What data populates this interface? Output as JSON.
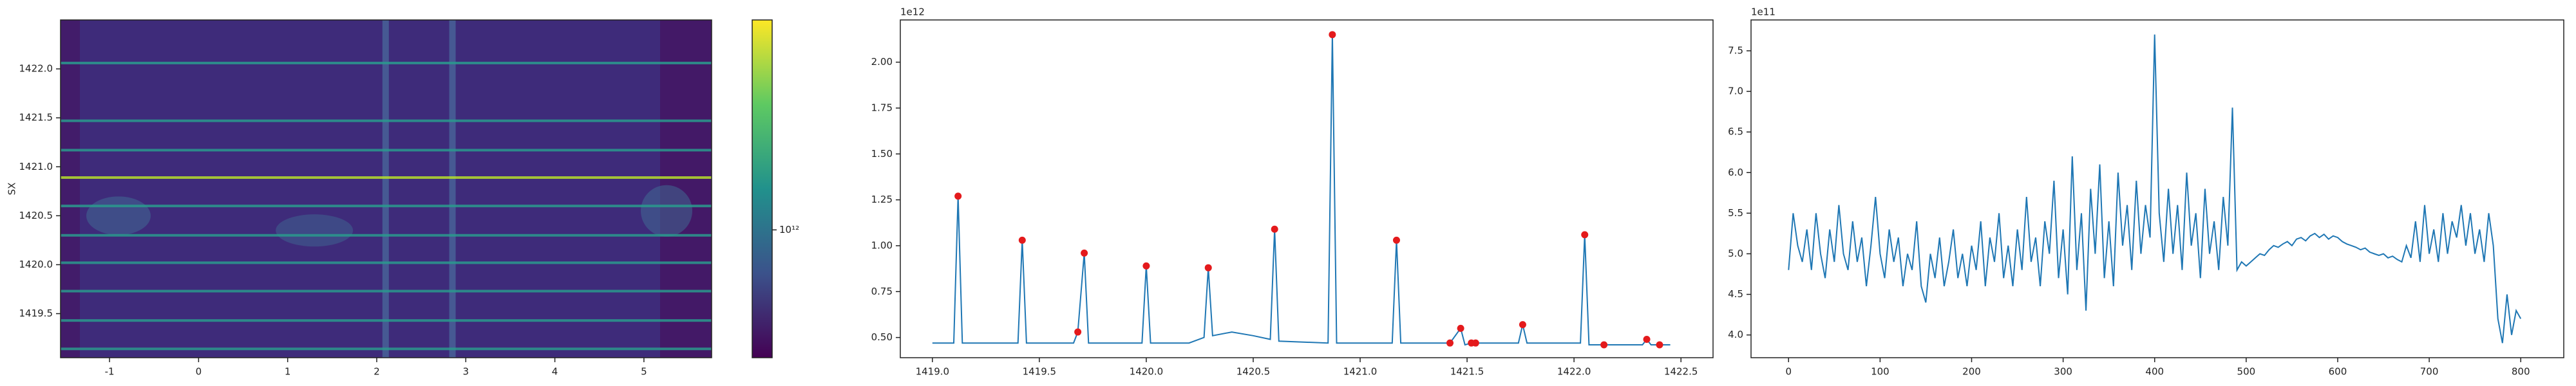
{
  "chart_data": [
    {
      "type": "heatmap",
      "ylabel": "SX",
      "colormap": "viridis",
      "xlim": [
        -1.55,
        5.76
      ],
      "xticks": [
        -1,
        0,
        1,
        2,
        3,
        4,
        5
      ],
      "ylim": [
        1419.05,
        1422.5
      ],
      "yticks": [
        {
          "value": 1419.5,
          "label": "1419.5"
        },
        {
          "value": 1420,
          "label": "1420.0"
        },
        {
          "value": 1420.5,
          "label": "1420.5"
        },
        {
          "value": 1421,
          "label": "1421.0"
        },
        {
          "value": 1421.5,
          "label": "1421.5"
        },
        {
          "value": 1422,
          "label": "1422.0"
        }
      ],
      "streaks": [
        1422.06,
        1421.47,
        1421.17,
        1420.89,
        1420.6,
        1420.3,
        1420.02,
        1419.73,
        1419.43,
        1419.14
      ],
      "vertical_bands": [
        2.1,
        2.85
      ],
      "colorbar": {
        "log": true,
        "clim": [
          430000000000,
          4000000000000
        ],
        "ticks": [
          {
            "value": 1000000000000,
            "label": "10¹²"
          }
        ]
      }
    },
    {
      "type": "line",
      "offset_text": "1e12",
      "color": "#1f77b4",
      "marker_color": "#e41a1c",
      "xlim": [
        1418.85,
        1422.65
      ],
      "xticks": [
        {
          "value": 1419,
          "label": "1419.0"
        },
        1419.5,
        {
          "value": 1420,
          "label": "1420.0"
        },
        1420.5,
        {
          "value": 1421,
          "label": "1421.0"
        },
        1421.5,
        {
          "value": 1422,
          "label": "1422.0"
        },
        1422.5
      ],
      "ylim": [
        0.39,
        2.23
      ],
      "yticks": [
        {
          "value": 0.5,
          "label": "0.50"
        },
        {
          "value": 0.75,
          "label": "0.75"
        },
        {
          "value": 1,
          "label": "1.00"
        },
        {
          "value": 1.25,
          "label": "1.25"
        },
        {
          "value": 1.5,
          "label": "1.50"
        },
        {
          "value": 1.75,
          "label": "1.75"
        },
        {
          "value": 2,
          "label": "2.00"
        }
      ],
      "x": [
        1419.0,
        1419.1,
        1419.12,
        1419.14,
        1419.4,
        1419.42,
        1419.44,
        1419.66,
        1419.68,
        1419.71,
        1419.73,
        1419.98,
        1420.0,
        1420.02,
        1420.2,
        1420.27,
        1420.29,
        1420.31,
        1420.4,
        1420.5,
        1420.58,
        1420.6,
        1420.62,
        1420.85,
        1420.87,
        1420.89,
        1421.15,
        1421.17,
        1421.19,
        1421.4,
        1421.42,
        1421.47,
        1421.49,
        1421.52,
        1421.54,
        1421.74,
        1421.76,
        1421.78,
        1422.03,
        1422.05,
        1422.07,
        1422.14,
        1422.32,
        1422.34,
        1422.36,
        1422.4,
        1422.45
      ],
      "values": [
        0.47,
        0.47,
        1.27,
        0.47,
        0.47,
        1.03,
        0.47,
        0.47,
        0.53,
        0.96,
        0.47,
        0.47,
        0.89,
        0.47,
        0.47,
        0.5,
        0.88,
        0.51,
        0.53,
        0.51,
        0.49,
        1.09,
        0.48,
        0.47,
        2.15,
        0.47,
        0.47,
        1.03,
        0.47,
        0.47,
        0.47,
        0.55,
        0.46,
        0.47,
        0.47,
        0.47,
        0.57,
        0.47,
        0.47,
        1.06,
        0.46,
        0.46,
        0.46,
        0.49,
        0.46,
        0.46,
        0.46
      ],
      "peaks_x": [
        1419.12,
        1419.42,
        1419.68,
        1419.71,
        1420.0,
        1420.29,
        1420.6,
        1420.87,
        1421.17,
        1421.42,
        1421.47,
        1421.52,
        1421.54,
        1421.76,
        1422.05,
        1422.14,
        1422.34,
        1422.4
      ],
      "peaks_y": [
        1.27,
        1.03,
        0.53,
        0.96,
        0.89,
        0.88,
        1.09,
        2.15,
        1.03,
        0.47,
        0.55,
        0.47,
        0.47,
        0.57,
        1.06,
        0.46,
        0.49,
        0.46
      ]
    },
    {
      "type": "line",
      "offset_text": "1e11",
      "color": "#1f77b4",
      "xlim": [
        -41,
        847
      ],
      "xticks": [
        0,
        100,
        200,
        300,
        400,
        500,
        600,
        700,
        800
      ],
      "ylim": [
        3.72,
        7.88
      ],
      "yticks": [
        {
          "value": 4,
          "label": "4.0"
        },
        4.5,
        {
          "value": 5,
          "label": "5.0"
        },
        5.5,
        {
          "value": 6,
          "label": "6.0"
        },
        6.5,
        {
          "value": 7,
          "label": "7.0"
        },
        7.5
      ],
      "x": [
        0,
        5,
        10,
        15,
        20,
        25,
        30,
        35,
        40,
        45,
        50,
        55,
        60,
        65,
        70,
        75,
        80,
        85,
        90,
        95,
        100,
        105,
        110,
        115,
        120,
        125,
        130,
        135,
        140,
        145,
        150,
        155,
        160,
        165,
        170,
        175,
        180,
        185,
        190,
        195,
        200,
        205,
        210,
        215,
        220,
        225,
        230,
        235,
        240,
        245,
        250,
        255,
        260,
        265,
        270,
        275,
        280,
        285,
        290,
        295,
        300,
        305,
        310,
        315,
        320,
        325,
        330,
        335,
        340,
        345,
        350,
        355,
        360,
        365,
        370,
        375,
        380,
        385,
        390,
        395,
        400,
        405,
        410,
        415,
        420,
        425,
        430,
        435,
        440,
        445,
        450,
        455,
        460,
        465,
        470,
        475,
        480,
        485,
        490,
        495,
        500,
        505,
        510,
        515,
        520,
        525,
        530,
        535,
        540,
        545,
        550,
        555,
        560,
        565,
        570,
        575,
        580,
        585,
        590,
        595,
        600,
        605,
        610,
        615,
        620,
        625,
        630,
        635,
        640,
        645,
        650,
        655,
        660,
        665,
        670,
        675,
        680,
        685,
        690,
        695,
        700,
        705,
        710,
        715,
        720,
        725,
        730,
        735,
        740,
        745,
        750,
        755,
        760,
        765,
        770,
        775,
        780,
        785,
        790,
        795,
        800
      ],
      "values": [
        4.8,
        5.5,
        5.1,
        4.9,
        5.3,
        4.8,
        5.5,
        5.0,
        4.7,
        5.3,
        4.9,
        5.6,
        5.0,
        4.8,
        5.4,
        4.9,
        5.2,
        4.6,
        5.1,
        5.7,
        5.0,
        4.7,
        5.3,
        4.9,
        5.2,
        4.6,
        5.0,
        4.8,
        5.4,
        4.6,
        4.4,
        5.0,
        4.7,
        5.2,
        4.6,
        4.9,
        5.3,
        4.7,
        5.0,
        4.6,
        5.1,
        4.8,
        5.4,
        4.6,
        5.2,
        4.9,
        5.5,
        4.7,
        5.1,
        4.6,
        5.3,
        4.8,
        5.7,
        4.9,
        5.2,
        4.6,
        5.4,
        5.0,
        5.9,
        4.7,
        5.3,
        4.5,
        6.2,
        4.8,
        5.5,
        4.3,
        5.8,
        5.0,
        6.1,
        4.7,
        5.4,
        4.6,
        6.0,
        5.1,
        5.6,
        4.8,
        5.9,
        5.0,
        5.6,
        5.2,
        7.7,
        5.5,
        4.9,
        5.8,
        5.0,
        5.6,
        4.8,
        6.0,
        5.1,
        5.5,
        4.7,
        5.8,
        5.0,
        5.4,
        4.8,
        5.7,
        5.1,
        6.8,
        4.8,
        4.9,
        4.85,
        4.9,
        4.95,
        5.0,
        4.98,
        5.05,
        5.1,
        5.08,
        5.12,
        5.15,
        5.1,
        5.18,
        5.2,
        5.16,
        5.22,
        5.25,
        5.2,
        5.24,
        5.18,
        5.22,
        5.2,
        5.15,
        5.12,
        5.1,
        5.08,
        5.05,
        5.07,
        5.02,
        5.0,
        4.98,
        5.0,
        4.95,
        4.97,
        4.93,
        4.9,
        5.1,
        4.95,
        5.4,
        4.9,
        5.6,
        5.0,
        5.3,
        4.9,
        5.5,
        5.0,
        5.4,
        5.2,
        5.6,
        5.1,
        5.5,
        5.0,
        5.3,
        4.9,
        5.5,
        5.1,
        4.2,
        3.9,
        4.5,
        4.0,
        4.3,
        4.2
      ]
    }
  ]
}
